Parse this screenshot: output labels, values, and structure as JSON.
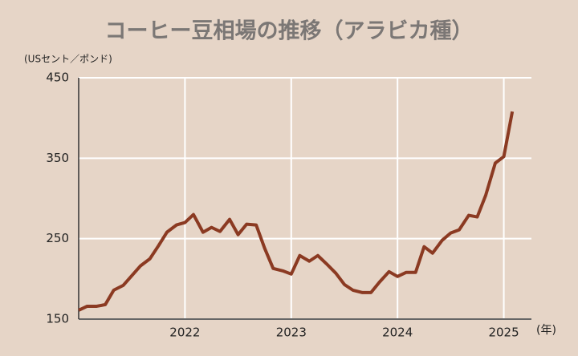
{
  "chart_data": {
    "type": "line",
    "title": "コーヒー豆相場の推移（アラビカ種）",
    "y_label": "(USセント／ポンド)",
    "x_label": "(年)",
    "x": [
      2021.0,
      2021.08,
      2021.17,
      2021.25,
      2021.33,
      2021.42,
      2021.5,
      2021.58,
      2021.67,
      2021.75,
      2021.83,
      2021.92,
      2022.0,
      2022.08,
      2022.17,
      2022.25,
      2022.33,
      2022.42,
      2022.5,
      2022.58,
      2022.67,
      2022.75,
      2022.83,
      2022.92,
      2023.0,
      2023.08,
      2023.17,
      2023.25,
      2023.33,
      2023.42,
      2023.5,
      2023.58,
      2023.67,
      2023.75,
      2023.83,
      2023.92,
      2024.0,
      2024.08,
      2024.17,
      2024.25,
      2024.33,
      2024.42,
      2024.5,
      2024.58,
      2024.67,
      2024.75,
      2024.83,
      2024.92,
      2025.0,
      2025.08
    ],
    "series": [
      {
        "color": "#8b3a22",
        "values": [
          161,
          166,
          166,
          168,
          186,
          192,
          204,
          216,
          225,
          241,
          258,
          267,
          270,
          280,
          258,
          264,
          259,
          274,
          255,
          268,
          267,
          238,
          213,
          210,
          206,
          229,
          222,
          229,
          219,
          207,
          193,
          186,
          183,
          183,
          196,
          209,
          203,
          208,
          208,
          240,
          232,
          248,
          257,
          261,
          279,
          277,
          304,
          344,
          352,
          408
        ]
      }
    ],
    "xlim": [
      2021.0,
      2025.26
    ],
    "xticks": [
      2022,
      2023,
      2024,
      2025
    ],
    "ylim": [
      150,
      450
    ],
    "yticks": [
      150,
      250,
      350,
      450
    ],
    "grid": true
  }
}
